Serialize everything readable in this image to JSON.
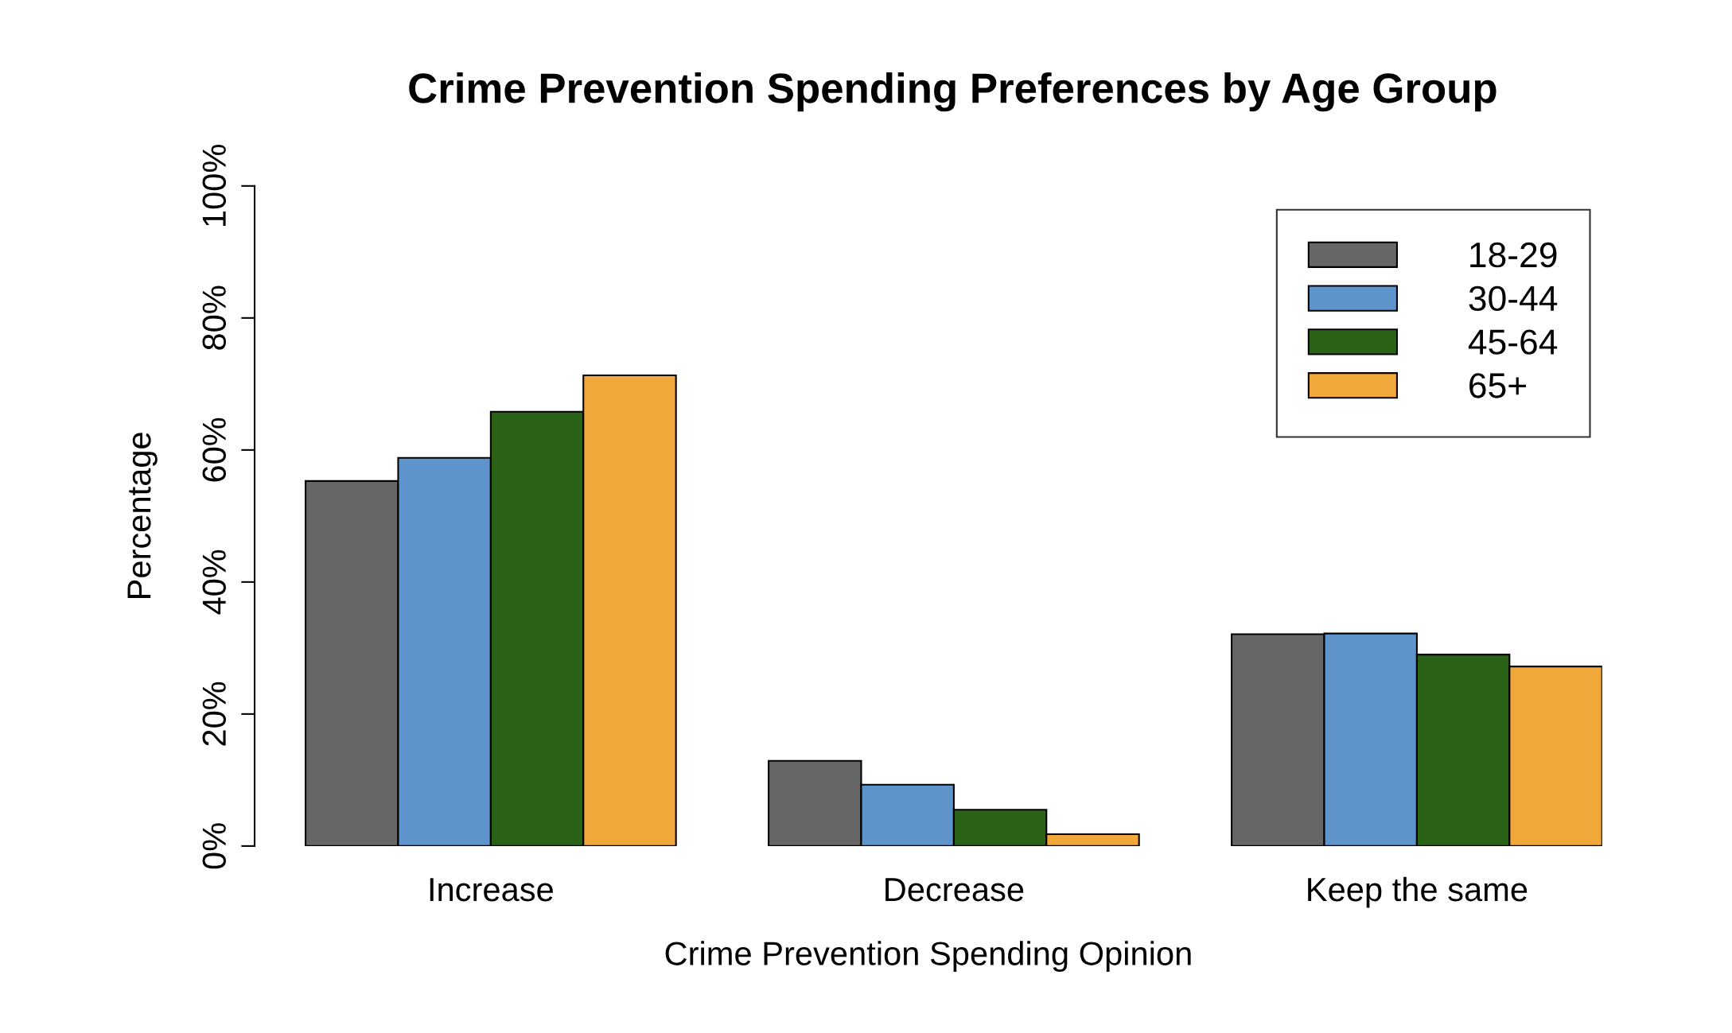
{
  "chart_data": {
    "type": "bar",
    "title": "Crime Prevention Spending Preferences by Age Group",
    "xlabel": "Crime Prevention Spending Opinion",
    "ylabel": "Percentage",
    "categories": [
      "Increase",
      "Decrease",
      "Keep the same"
    ],
    "series": [
      {
        "name": "18-29",
        "color": "#666666",
        "values": [
          55.3,
          12.9,
          32.1
        ]
      },
      {
        "name": "30-44",
        "color": "#5f93cb",
        "values": [
          58.8,
          9.3,
          32.2
        ]
      },
      {
        "name": "45-64",
        "color": "#2a6217",
        "values": [
          65.8,
          5.5,
          29.0
        ]
      },
      {
        "name": "65+",
        "color": "#f0a83b",
        "values": [
          71.3,
          1.8,
          27.2
        ]
      }
    ],
    "ylim": [
      0,
      100
    ],
    "yticks": [
      {
        "value": 0,
        "label": "0%"
      },
      {
        "value": 20,
        "label": "20%"
      },
      {
        "value": 40,
        "label": "40%"
      },
      {
        "value": 60,
        "label": "60%"
      },
      {
        "value": 80,
        "label": "80%"
      },
      {
        "value": 100,
        "label": "100%"
      }
    ],
    "grid": false,
    "legend": "top right"
  }
}
